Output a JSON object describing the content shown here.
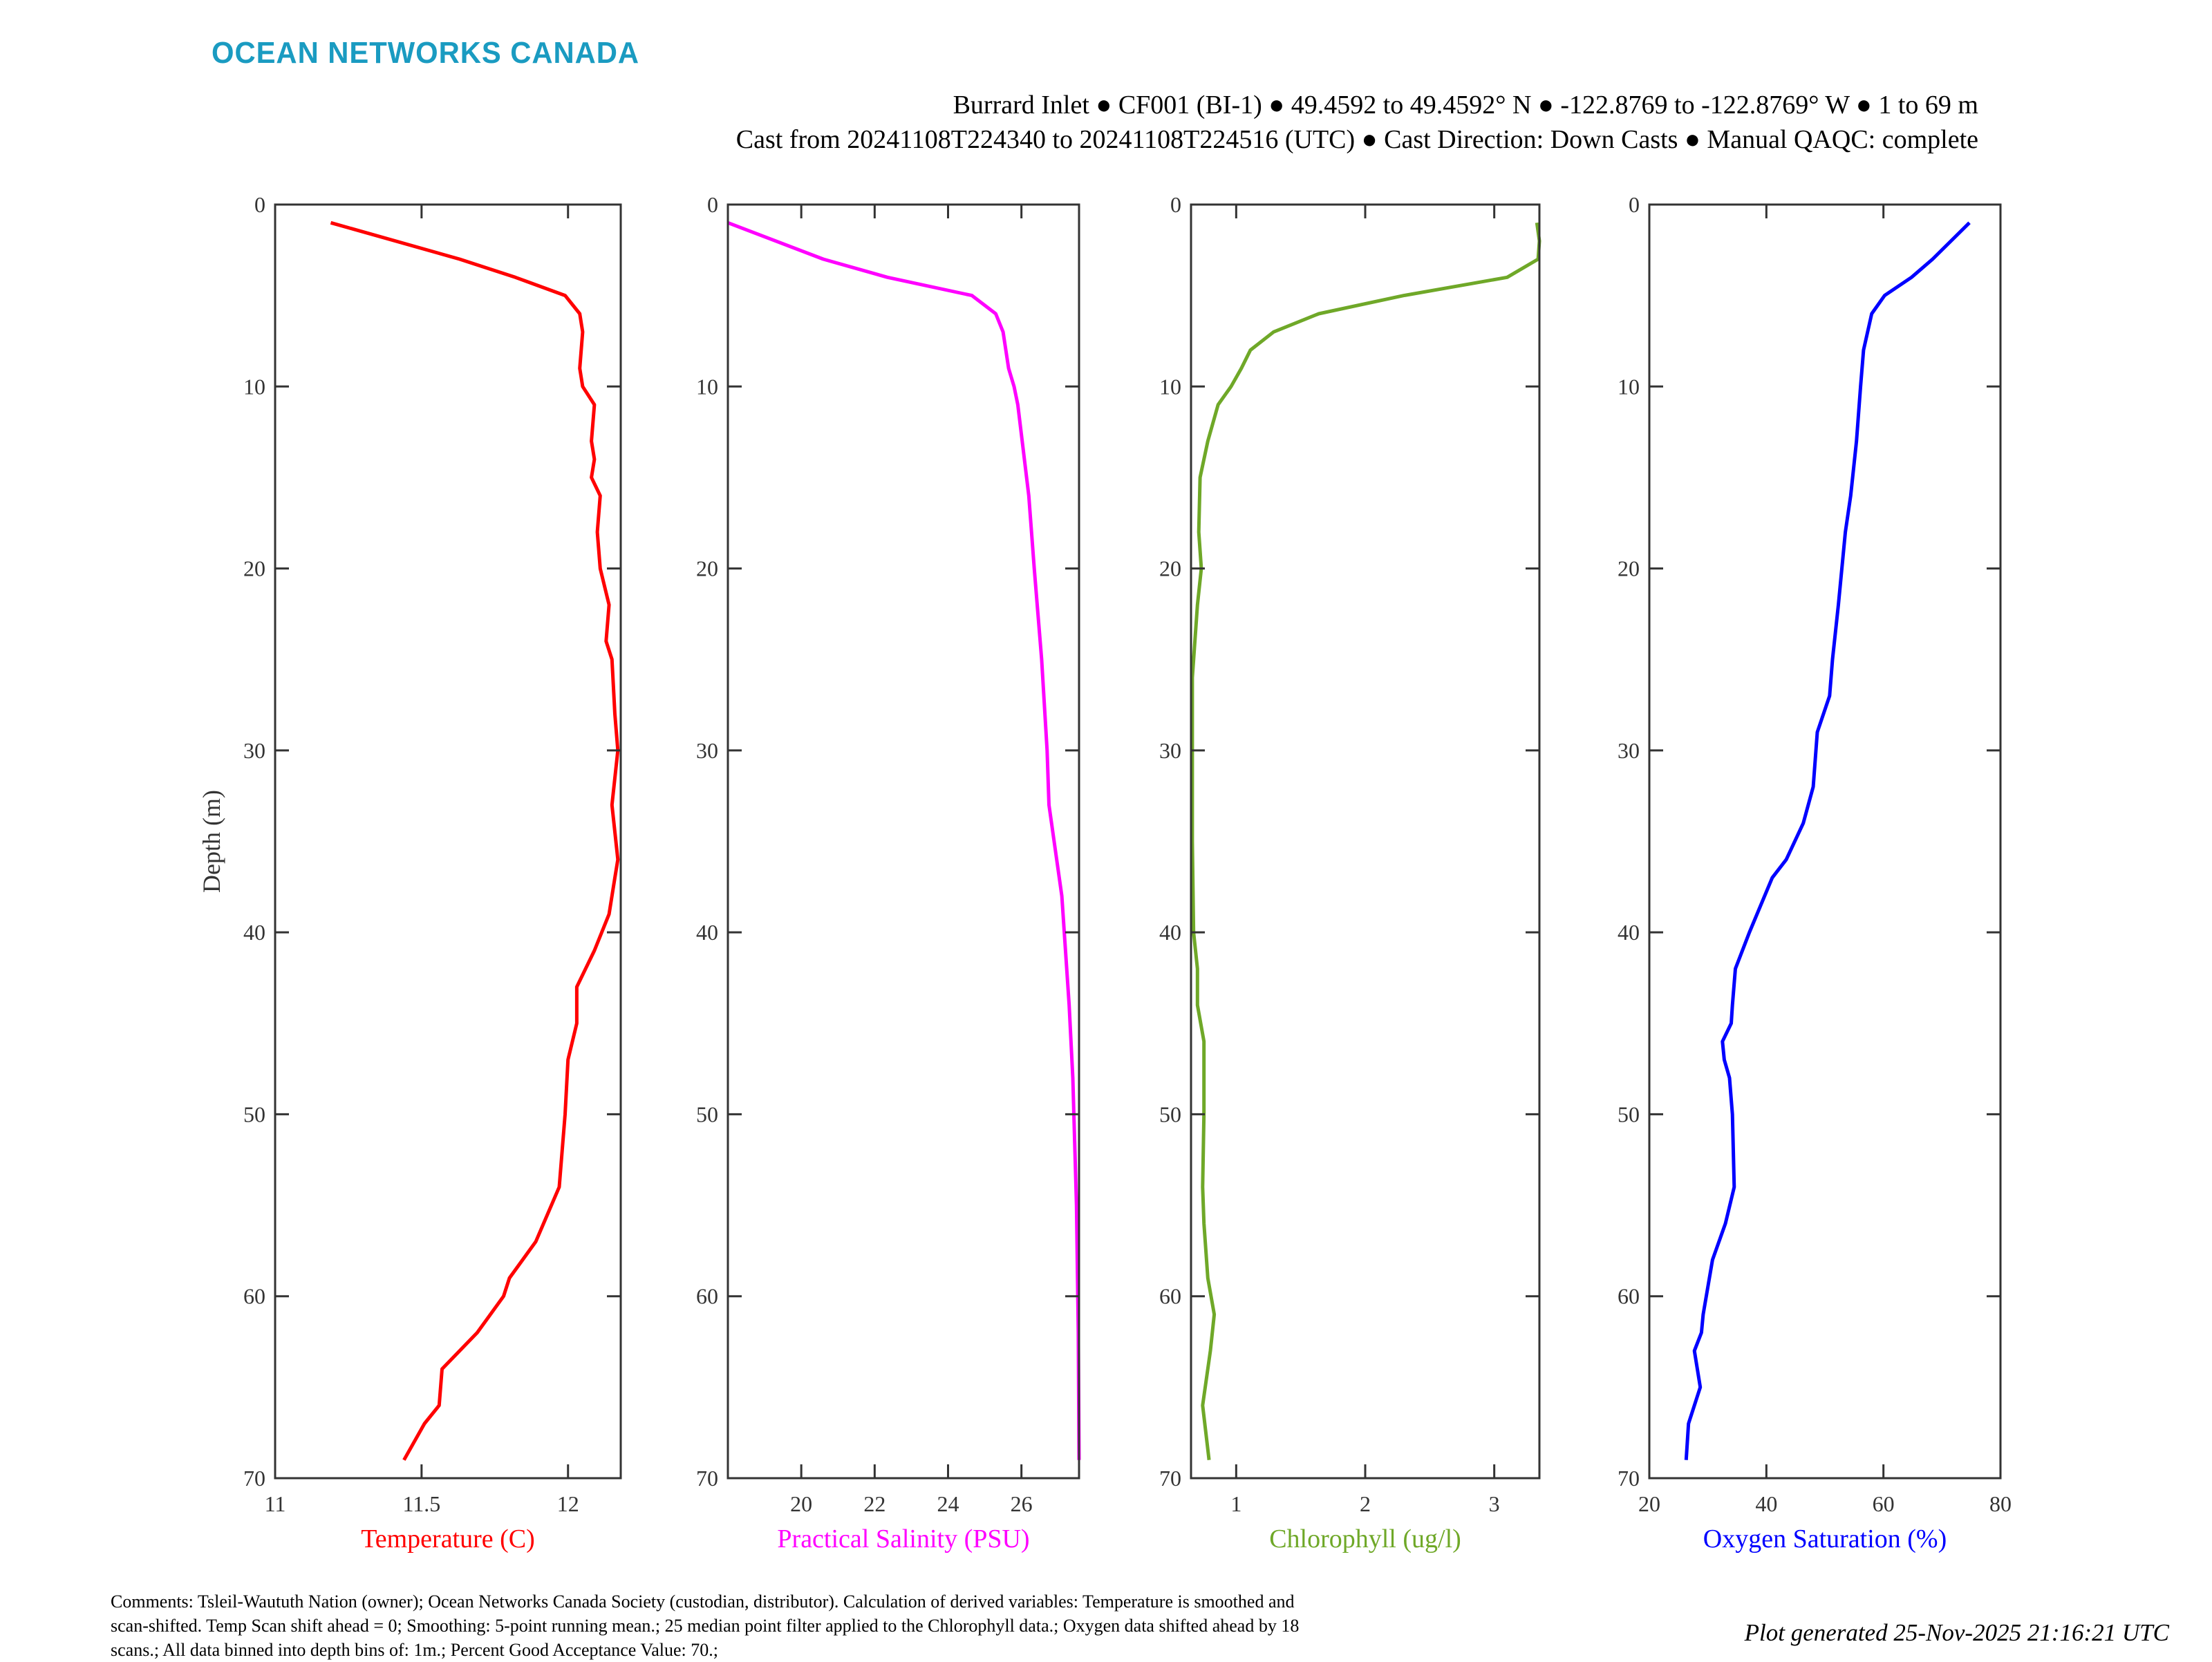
{
  "header": {
    "logo": "OCEAN NETWORKS CANADA",
    "title_line1": "Burrard Inlet ● CF001 (BI-1) ● 49.4592 to 49.4592° N ● -122.8769 to -122.8769° W ● 1 to 69 m",
    "title_line2": "Cast from 20241108T224340 to 20241108T224516 (UTC) ● Cast Direction: Down Casts ● Manual QAQC: complete"
  },
  "chart_data": [
    {
      "type": "line",
      "xlabel": "Temperature (C)",
      "ylabel": "Depth (m)",
      "color": "#ff0000",
      "xlim": [
        11,
        12.18
      ],
      "ylim": [
        70,
        0
      ],
      "xticks": [
        11,
        11.5,
        12
      ],
      "xtick_labels": [
        "11",
        "11.5",
        "12"
      ],
      "yticks": [
        0,
        10,
        20,
        30,
        40,
        50,
        60,
        70
      ],
      "ytick_labels": [
        "0",
        "10",
        "20",
        "30",
        "40",
        "50",
        "60",
        "70"
      ],
      "grid": false,
      "series": [
        {
          "depth": [
            1,
            3,
            4,
            5,
            6,
            7,
            9,
            10,
            11,
            13,
            14,
            15,
            16,
            18,
            20,
            22,
            24,
            25,
            28,
            30,
            33,
            36,
            37,
            39,
            41,
            43,
            45,
            47,
            50,
            54,
            57,
            59,
            60,
            62,
            64,
            66,
            67,
            69
          ],
          "values": [
            11.19,
            11.63,
            11.82,
            11.99,
            12.04,
            12.05,
            12.04,
            12.05,
            12.09,
            12.08,
            12.09,
            12.08,
            12.11,
            12.1,
            12.11,
            12.14,
            12.13,
            12.15,
            12.16,
            12.17,
            12.15,
            12.17,
            12.16,
            12.14,
            12.09,
            12.03,
            12.03,
            12.0,
            11.99,
            11.97,
            11.89,
            11.8,
            11.78,
            11.69,
            11.57,
            11.56,
            11.51,
            11.44
          ]
        }
      ]
    },
    {
      "type": "line",
      "xlabel": "Practical Salinity (PSU)",
      "color": "#ff00ff",
      "xlim": [
        18.0,
        27.57
      ],
      "ylim": [
        70,
        0
      ],
      "xticks": [
        20,
        22,
        24,
        26
      ],
      "xtick_labels": [
        "20",
        "22",
        "24",
        "26"
      ],
      "yticks": [
        0,
        10,
        20,
        30,
        40,
        50,
        60,
        70
      ],
      "ytick_labels": [
        "0",
        "10",
        "20",
        "30",
        "40",
        "50",
        "60",
        "70"
      ],
      "grid": false,
      "series": [
        {
          "depth": [
            1,
            3,
            4,
            5,
            6,
            7,
            9,
            10,
            11,
            16,
            20,
            25,
            30,
            33,
            38,
            44,
            48,
            55,
            62,
            69
          ],
          "values": [
            18.0,
            20.6,
            22.35,
            24.65,
            25.3,
            25.5,
            25.65,
            25.8,
            25.9,
            26.2,
            26.35,
            26.55,
            26.7,
            26.75,
            27.1,
            27.3,
            27.4,
            27.5,
            27.55,
            27.57
          ]
        }
      ]
    },
    {
      "type": "line",
      "xlabel": "Chlorophyll (ug/l)",
      "color": "#6fa828",
      "xlim": [
        0.65,
        3.35
      ],
      "ylim": [
        70,
        0
      ],
      "xticks": [
        1,
        2,
        3
      ],
      "xtick_labels": [
        "1",
        "2",
        "3"
      ],
      "yticks": [
        0,
        10,
        20,
        30,
        40,
        50,
        60,
        70
      ],
      "ytick_labels": [
        "0",
        "10",
        "20",
        "30",
        "40",
        "50",
        "60",
        "70"
      ],
      "grid": false,
      "series": [
        {
          "depth": [
            1,
            2,
            3,
            4,
            5,
            6,
            7,
            8,
            9,
            10,
            11,
            13,
            15,
            18,
            20,
            22,
            26,
            30,
            35,
            40,
            42,
            44,
            46,
            50,
            54,
            56,
            59,
            61,
            63,
            66,
            69
          ],
          "values": [
            3.33,
            3.35,
            3.34,
            3.1,
            2.3,
            1.64,
            1.29,
            1.11,
            1.04,
            0.96,
            0.86,
            0.78,
            0.72,
            0.71,
            0.73,
            0.7,
            0.66,
            0.66,
            0.66,
            0.67,
            0.7,
            0.7,
            0.75,
            0.75,
            0.74,
            0.75,
            0.78,
            0.83,
            0.8,
            0.74,
            0.79
          ]
        }
      ]
    },
    {
      "type": "line",
      "xlabel": "Oxygen Saturation (%)",
      "color": "#0000ff",
      "xlim": [
        20,
        80
      ],
      "ylim": [
        70,
        0
      ],
      "xticks": [
        20,
        40,
        60,
        80
      ],
      "xtick_labels": [
        "20",
        "40",
        "60",
        "80"
      ],
      "yticks": [
        0,
        10,
        20,
        30,
        40,
        50,
        60,
        70
      ],
      "ytick_labels": [
        "0",
        "10",
        "20",
        "30",
        "40",
        "50",
        "60",
        "70"
      ],
      "grid": false,
      "series": [
        {
          "depth": [
            1,
            3,
            4,
            5,
            6,
            8,
            10,
            13,
            16,
            18,
            22,
            25,
            27,
            29,
            32,
            34,
            36,
            37,
            40,
            42,
            44,
            45,
            46,
            47,
            48,
            50,
            54,
            56,
            58,
            61,
            62,
            63,
            65,
            67,
            69
          ],
          "values": [
            74.7,
            68.4,
            64.8,
            60.2,
            58.0,
            56.6,
            56.1,
            55.4,
            54.4,
            53.5,
            52.3,
            51.3,
            50.8,
            48.7,
            48.0,
            46.3,
            43.4,
            41.0,
            37.1,
            34.7,
            34.2,
            34.0,
            32.5,
            32.8,
            33.7,
            34.2,
            34.5,
            33.0,
            30.8,
            29.2,
            28.9,
            27.7,
            28.7,
            26.7,
            26.3
          ]
        }
      ]
    }
  ],
  "footer": {
    "comments_lines": [
      "Comments: Tsleil-Waututh Nation (owner); Ocean Networks Canada Society (custodian, distributor). Calculation of derived variables: Temperature is smoothed and",
      "scan-shifted. Temp Scan shift ahead = 0; Smoothing: 5-point running mean.; 25 median point filter applied to the Chlorophyll data.; Oxygen data shifted ahead by 18",
      "scans.; All data binned into depth bins of: 1m.; Percent Good Acceptance Value: 70.;"
    ],
    "generated": "Plot generated 25-Nov-2025 21:16:21 UTC"
  }
}
